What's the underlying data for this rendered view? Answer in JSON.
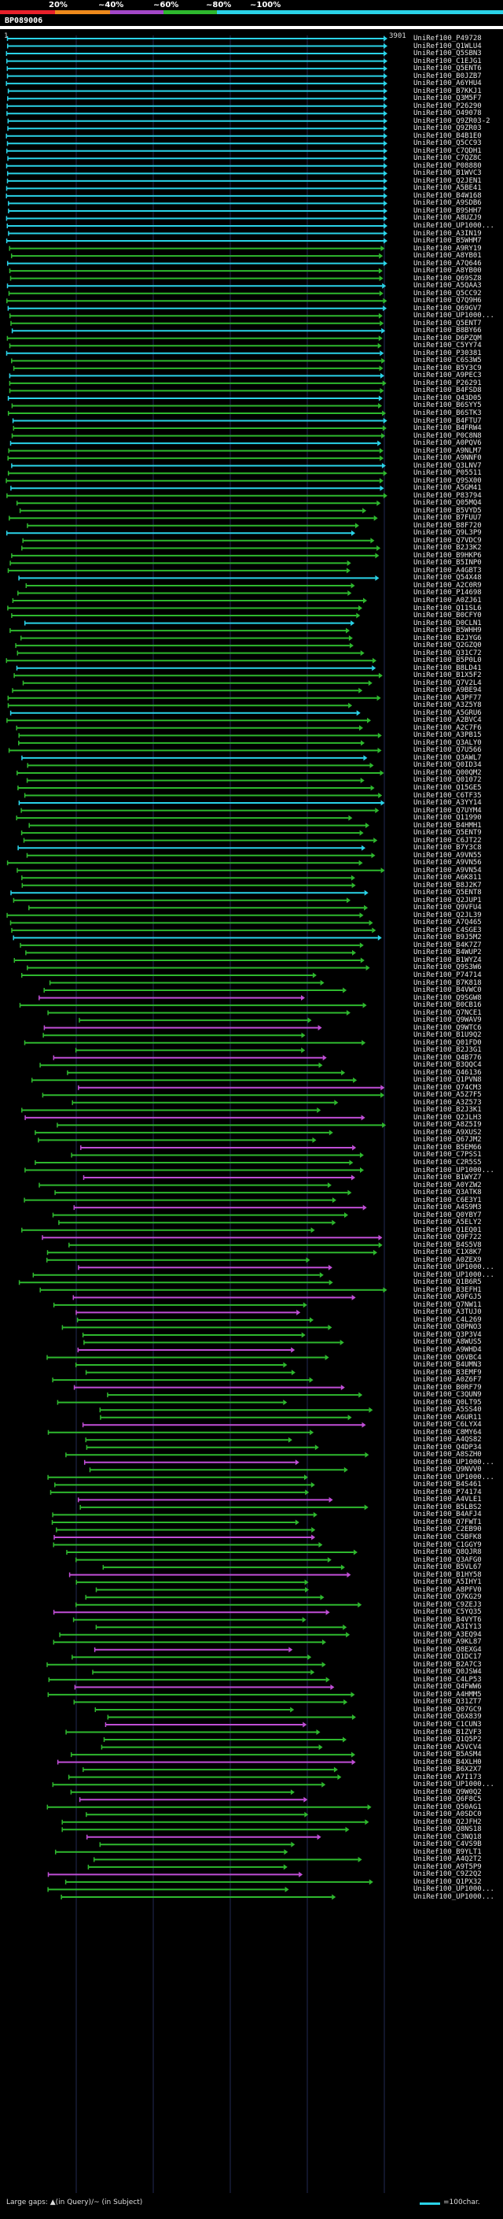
{
  "scale": {
    "labels": [
      "20%",
      "~40%",
      "~60%",
      "~80%",
      "~100%"
    ],
    "colors": [
      "#e8202a",
      "#ee8a1c",
      "#a347c8",
      "#2eb82e",
      "#2ad3e8"
    ]
  },
  "query": {
    "id": "BP089006",
    "start": "1",
    "end": "3901"
  },
  "labels": [
    "UniRef100_P49728",
    "UniRef100_Q1WLU4",
    "UniRef100_Q5SBN3",
    "UniRef100_C1EJG1",
    "UniRef100_Q5ENT6",
    "UniRef100_B0JZB7",
    "UniRef100_A6YHU4",
    "UniRef100_B7KKJ1",
    "UniRef100_Q3M5F7",
    "UniRef100_P26290",
    "UniRef100_O49078",
    "UniRef100_Q9ZR03-2",
    "UniRef100_Q9ZR03",
    "UniRef100_B4B1E0",
    "UniRef100_Q5CC93",
    "UniRef100_C7QDH1",
    "UniRef100_C7QZ8C",
    "UniRef100_P08880",
    "UniRef100_B1WVC3",
    "UniRef100_Q2JEN1",
    "UniRef100_A5BE41",
    "UniRef100_B4W168",
    "UniRef100_A9SDB6",
    "UniRef100_B9SHH7",
    "UniRef100_A8UZJ9",
    "UniRef100_UP1000...",
    "UniRef100_A3IN19",
    "UniRef100_B5WHM7",
    "UniRef100_A9RY19",
    "UniRef100_A8YB01",
    "UniRef100_A7Q646",
    "UniRef100_A8YB00",
    "UniRef100_Q69SZ8",
    "UniRef100_A5QAA3",
    "UniRef100_Q5CC92",
    "UniRef100_Q7Q9H6",
    "UniRef100_Q69GV7",
    "UniRef100_UP1000...",
    "UniRef100_Q5ENT7",
    "UniRef100_B8BY66",
    "UniRef100_D6PZQM",
    "UniRef100_C5YY74",
    "UniRef100_P30381",
    "UniRef100_C6S3W5",
    "UniRef100_B5Y3C9",
    "UniRef100_A9PEC3",
    "UniRef100_P26291",
    "UniRef100_B4FSD8",
    "UniRef100_Q43D05",
    "UniRef100_B6SYY5",
    "UniRef100_B6STK3",
    "UniRef100_B4FTU7",
    "UniRef100_B4FRW4",
    "UniRef100_P0C8N8",
    "UniRef100_A0PQV6",
    "UniRef100_A9NLM7",
    "UniRef100_A9NNF0",
    "UniRef100_Q3LNV7",
    "UniRef100_P05511",
    "UniRef100_Q9SX00",
    "UniRef100_A5GM41",
    "UniRef100_P83794",
    "UniRef100_Q05MQ4",
    "UniRef100_B5VYD5",
    "UniRef100_B7FUU7",
    "UniRef100_B8F720",
    "UniRef100_Q9L3P9",
    "UniRef100_Q7VDC9",
    "UniRef100_B2J3K2",
    "UniRef100_B9HKP6",
    "UniRef100_B5INP0",
    "UniRef100_A4GBT3",
    "UniRef100_Q54X48",
    "UniRef100_A2C0R9",
    "UniRef100_P14698",
    "UniRef100_A0ZJ61",
    "UniRef100_Q11SL6",
    "UniRef100_B0CFY0",
    "UniRef100_D0CLN1",
    "UniRef100_B5WHH9",
    "UniRef100_B2JYG6",
    "UniRef100_Q2GZQ0",
    "UniRef100_Q31C72",
    "UniRef100_B5P0L0",
    "UniRef100_B8LD41",
    "UniRef100_B1X5F2",
    "UniRef100_Q7V2L4",
    "UniRef100_A9BE94",
    "UniRef100_A3PF77",
    "UniRef100_A3Z5Y8",
    "UniRef100_A5GRU6",
    "UniRef100_A2BVC4",
    "UniRef100_A2C7F6",
    "UniRef100_A3PB15",
    "UniRef100_Q3ALY0",
    "UniRef100_Q7U566",
    "UniRef100_Q3AWL7",
    "UniRef100_Q0ID34",
    "UniRef100_Q00QM2",
    "UniRef100_Q01072",
    "UniRef100_Q15GE5",
    "UniRef100_C6TF35",
    "UniRef100_A3YY14",
    "UniRef100_Q7UYM4",
    "UniRef100_Q11990",
    "UniRef100_B4HMH1",
    "UniRef100_Q5ENT9",
    "UniRef100_C6JT22",
    "UniRef100_B7Y3C8",
    "UniRef100_A9VN55",
    "UniRef100_A9VN56",
    "UniRef100_A9VN54",
    "UniRef100_A6K811",
    "UniRef100_B8J2K7",
    "UniRef100_Q5ENT8",
    "UniRef100_Q2JUP1",
    "UniRef100_Q9VFU4",
    "UniRef100_Q2JL39",
    "UniRef100_A7Q465",
    "UniRef100_C4SGE3",
    "UniRef100_B9J5M2",
    "UniRef100_B4K7Z7",
    "UniRef100_B4WUP2",
    "UniRef100_B1WYZ4",
    "UniRef100_Q9S3W6",
    "UniRef100_P74714",
    "UniRef100_B7K818",
    "UniRef100_B4VWC0",
    "UniRef100_Q9SGW8",
    "UniRef100_B0CB16",
    "UniRef100_Q7NCE1",
    "UniRef100_Q9WAV9",
    "UniRef100_Q9WTC6",
    "UniRef100_B1U9Q2",
    "UniRef100_Q01FD0",
    "UniRef100_B2J3G1",
    "UniRef100_Q4B776",
    "UniRef100_B3QQC4",
    "UniRef100_Q46136",
    "UniRef100_Q1PVN8",
    "UniRef100_Q74CM3",
    "UniRef100_A5Z7F5",
    "UniRef100_A3Z573",
    "UniRef100_B2J3K1",
    "UniRef100_Q2JLH3",
    "UniRef100_A8Z5I9",
    "UniRef100_A9XUS2",
    "UniRef100_Q67JM2",
    "UniRef100_B5EM66",
    "UniRef100_C7PSS1",
    "UniRef100_C2R5S5",
    "UniRef100_UP1000...",
    "UniRef100_B1WYZ7",
    "UniRef100_A0YZW2",
    "UniRef100_Q3ATK8",
    "UniRef100_C6E3Y1",
    "UniRef100_A4S9M3",
    "UniRef100_Q0YBY7",
    "UniRef100_A5ELY2",
    "UniRef100_Q1EQ01",
    "UniRef100_Q9F722",
    "UniRef100_B4S5V8",
    "UniRef100_C1X8K7",
    "UniRef100_A0ZEX9",
    "UniRef100_UP1000...",
    "UniRef100_UP1000...",
    "UniRef100_Q1B6R5",
    "UniRef100_B3EFH1",
    "UniRef100_A9FGJ5",
    "UniRef100_Q7NW11",
    "UniRef100_A3TUJ0",
    "UniRef100_C4L269",
    "UniRef100_Q8PNO3",
    "UniRef100_Q3P3V4",
    "UniRef100_A8WUS5",
    "UniRef100_A9WHD4",
    "UniRef100_Q6VBC4",
    "UniRef100_B4UMN3",
    "UniRef100_B3EMF9",
    "UniRef100_A0Z6F7",
    "UniRef100_B0RF79",
    "UniRef100_C3QUN9",
    "UniRef100_Q0LT95",
    "UniRef100_A5SS40",
    "UniRef100_A6UR11",
    "UniRef100_C6LYX4",
    "UniRef100_C8MY64",
    "UniRef100_A4QS82",
    "UniRef100_Q4DP34",
    "UniRef100_A8SZH0",
    "UniRef100_UP1000...",
    "UniRef100_Q9NVV0",
    "UniRef100_UP1000...",
    "UniRef100_B4S461",
    "UniRef100_P74174",
    "UniRef100_A4VLE1",
    "UniRef100_B5LBS2",
    "UniRef100_B4AFJ4",
    "UniRef100_Q7FWT1",
    "UniRef100_C2EB90",
    "UniRef100_C5BFK8",
    "UniRef100_C1GGY9",
    "UniRef100_Q8QJR8",
    "UniRef100_Q3AFG0",
    "UniRef100_B5VL67",
    "UniRef100_B1HY58",
    "UniRef100_A5IHY1",
    "UniRef100_A8PFV0",
    "UniRef100_Q7KG29",
    "UniRef100_C9ZEJ3",
    "UniRef100_C5YQ35",
    "UniRef100_B4VYT6",
    "UniRef100_A3IY13",
    "UniRef100_A3EQ94",
    "UniRef100_A9KL87",
    "UniRef100_Q8EXG4",
    "UniRef100_Q1DC17",
    "UniRef100_B2A7C3",
    "UniRef100_Q0JSW4",
    "UniRef100_C4LP53",
    "UniRef100_Q4FWW6",
    "UniRef100_A4HMM5",
    "UniRef100_Q31ZT7",
    "UniRef100_Q07GC9",
    "UniRef100_Q6X839",
    "UniRef100_C1CUN3",
    "UniRef100_B1ZVF3",
    "UniRef100_Q1Q5P2",
    "UniRef100_A5VCV4",
    "UniRef100_B5ASM4",
    "UniRef100_B4XLH0",
    "UniRef100_B6X2X7",
    "UniRef100_A7I173",
    "UniRef100_UP1000...",
    "UniRef100_Q9W0Q2",
    "UniRef100_Q6F8C5",
    "UniRef100_Q50AG1",
    "UniRef100_A0SDC0",
    "UniRef100_Q2JFH2",
    "UniRef100_Q8NS18",
    "UniRef100_C3NQ18",
    "UniRef100_C4VS9B",
    "UniRef100_B9YLT1",
    "UniRef100_A4Q2T2",
    "UniRef100_A9T5P9",
    "UniRef100_C9Z2Q2",
    "UniRef100_Q1PX32",
    "UniRef100_UP1000...",
    "UniRef100_UP1000..."
  ],
  "legend": {
    "text": "Large gaps: ▲(in Query)/~ (in Subject)",
    "scale_text": "=100char."
  }
}
